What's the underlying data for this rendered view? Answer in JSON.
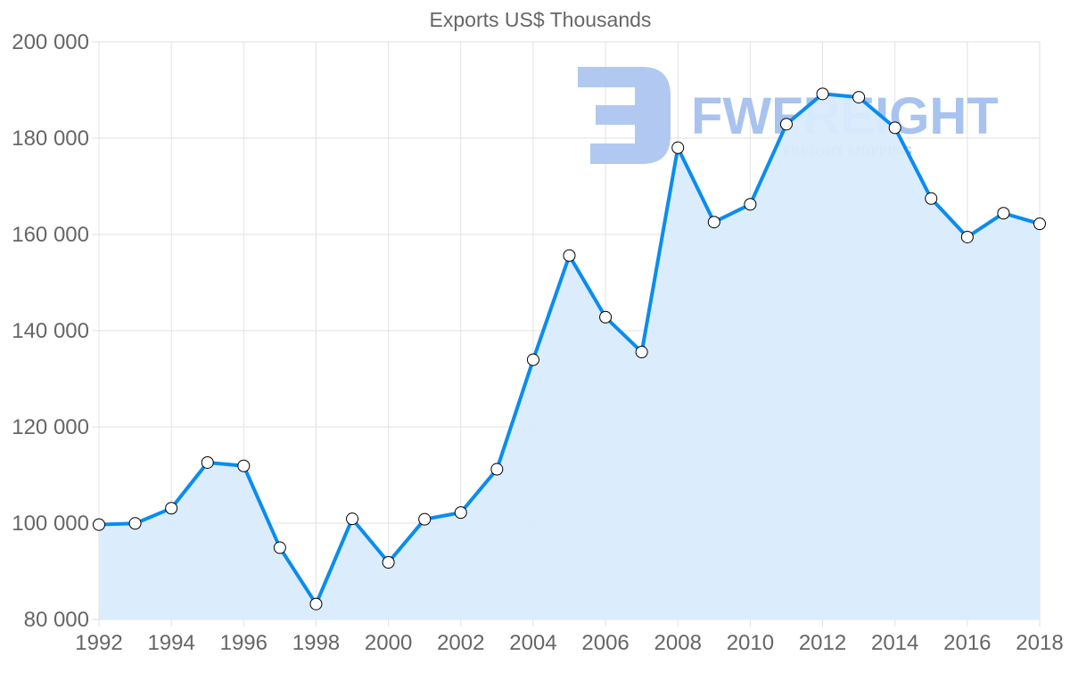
{
  "chart_data": {
    "type": "line",
    "title": "Exports US$ Thousands",
    "xlabel": "",
    "ylabel": "",
    "x": [
      1992,
      1993,
      1994,
      1995,
      1996,
      1997,
      1998,
      1999,
      2000,
      2001,
      2002,
      2003,
      2004,
      2005,
      2006,
      2007,
      2008,
      2009,
      2010,
      2011,
      2012,
      2013,
      2014,
      2015,
      2016,
      2017,
      2018
    ],
    "x_tick_labels": [
      "1992",
      "1994",
      "1996",
      "1998",
      "2000",
      "2002",
      "2004",
      "2006",
      "2008",
      "2010",
      "2012",
      "2014",
      "2016",
      "2018"
    ],
    "y_tick_labels": [
      "80 000",
      "100 000",
      "120 000",
      "140 000",
      "160 000",
      "180 000",
      "200 000"
    ],
    "series": [
      {
        "name": "Exports US$ Thousands",
        "values": [
          99700,
          99950,
          103100,
          112600,
          111900,
          94900,
          83200,
          100900,
          91850,
          100800,
          102200,
          111200,
          133950,
          155600,
          142800,
          135550,
          178000,
          162550,
          166250,
          182900,
          189200,
          188500,
          182150,
          167450,
          159450,
          164400,
          162200
        ],
        "color": "#0a8cf0",
        "fill": "#d9ebfc",
        "marker_fill": "#ffffff",
        "marker_stroke": "#000000"
      }
    ],
    "ylim": [
      80000,
      200000
    ],
    "xlim": [
      1992,
      2018
    ],
    "grid": true,
    "legend": "none",
    "watermark": {
      "text": "FWFREIGHT",
      "subtext": "FREIGHT SHIPPING"
    }
  },
  "chart_title": "Exports US$ Thousands",
  "watermark": {
    "text": "FWFREIGHT",
    "subtext": "FREIGHT SHIPPING"
  }
}
